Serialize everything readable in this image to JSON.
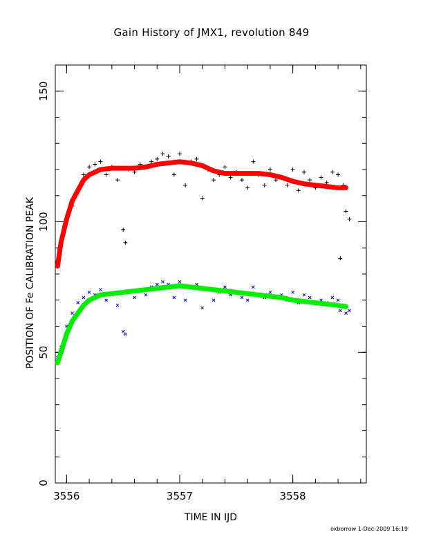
{
  "chart_data": {
    "type": "scatter",
    "title": "Gain History of JMX1, revolution 849",
    "xlabel": "TIME IN IJD",
    "ylabel": "POSITION OF Fe CALIBRATION PEAK",
    "xlim": [
      3555.9,
      3558.65
    ],
    "ylim": [
      0,
      160
    ],
    "xticks": [
      3556,
      3557,
      3558
    ],
    "yticks": [
      0,
      50,
      100,
      150
    ],
    "grid": false,
    "series": [
      {
        "marker": "plus",
        "color": "#000000",
        "x": [
          3555.92,
          3555.95,
          3556.0,
          3556.05,
          3556.1,
          3556.15,
          3556.2,
          3556.25,
          3556.3,
          3556.35,
          3556.4,
          3556.45,
          3556.5,
          3556.52,
          3556.55,
          3556.6,
          3556.65,
          3556.7,
          3556.75,
          3556.8,
          3556.85,
          3556.9,
          3556.95,
          3557.0,
          3557.05,
          3557.1,
          3557.15,
          3557.2,
          3557.25,
          3557.3,
          3557.35,
          3557.4,
          3557.45,
          3557.5,
          3557.55,
          3557.6,
          3557.65,
          3557.7,
          3557.75,
          3557.8,
          3557.85,
          3557.9,
          3557.95,
          3558.0,
          3558.05,
          3558.1,
          3558.15,
          3558.2,
          3558.25,
          3558.3,
          3558.35,
          3558.4,
          3558.42,
          3558.45,
          3558.47,
          3558.5
        ],
        "y": [
          85,
          92,
          100,
          106,
          112,
          118,
          121,
          122,
          123,
          118,
          121,
          116,
          97,
          92,
          120,
          119,
          122,
          121,
          123,
          124,
          126,
          125,
          118,
          126,
          114,
          123,
          124,
          109,
          120,
          116,
          118,
          121,
          117,
          119,
          116,
          113,
          123,
          118,
          114,
          120,
          116,
          117,
          114,
          120,
          112,
          119,
          116,
          113,
          117,
          115,
          119,
          118,
          86,
          114,
          104,
          101
        ]
      },
      {
        "marker": "cross",
        "color": "#0000cc",
        "x": [
          3555.92,
          3555.95,
          3556.0,
          3556.05,
          3556.1,
          3556.15,
          3556.2,
          3556.25,
          3556.3,
          3556.35,
          3556.4,
          3556.45,
          3556.5,
          3556.52,
          3556.55,
          3556.6,
          3556.65,
          3556.7,
          3556.75,
          3556.8,
          3556.85,
          3556.9,
          3556.95,
          3557.0,
          3557.05,
          3557.1,
          3557.15,
          3557.2,
          3557.25,
          3557.3,
          3557.35,
          3557.4,
          3557.45,
          3557.5,
          3557.55,
          3557.6,
          3557.65,
          3557.7,
          3557.75,
          3557.8,
          3557.85,
          3557.9,
          3557.95,
          3558.0,
          3558.05,
          3558.1,
          3558.15,
          3558.2,
          3558.25,
          3558.3,
          3558.35,
          3558.4,
          3558.42,
          3558.45,
          3558.47,
          3558.5
        ],
        "y": [
          48,
          52,
          60,
          65,
          69,
          71,
          73,
          72,
          74,
          70,
          72,
          68,
          58,
          57,
          73,
          71,
          74,
          72,
          75,
          76,
          77,
          76,
          71,
          77,
          70,
          75,
          76,
          67,
          74,
          70,
          73,
          75,
          72,
          73,
          71,
          70,
          75,
          72,
          71,
          73,
          71,
          72,
          70,
          73,
          69,
          72,
          71,
          69,
          70,
          69,
          71,
          70,
          66,
          68,
          65,
          66
        ]
      },
      {
        "marker": "thick-line",
        "color": "#ff0000",
        "x": [
          3555.92,
          3555.95,
          3556.0,
          3556.05,
          3556.1,
          3556.15,
          3556.2,
          3556.3,
          3556.4,
          3556.5,
          3556.6,
          3556.7,
          3556.8,
          3556.9,
          3557.0,
          3557.1,
          3557.2,
          3557.3,
          3557.4,
          3557.5,
          3557.6,
          3557.7,
          3557.8,
          3557.9,
          3558.0,
          3558.1,
          3558.2,
          3558.3,
          3558.4,
          3558.47
        ],
        "y": [
          83,
          92,
          101,
          108,
          112,
          116,
          118,
          120,
          120.5,
          120.5,
          120.5,
          121,
          122,
          122.5,
          123,
          122.5,
          121.5,
          119.5,
          118.5,
          118.5,
          118.5,
          118.5,
          118,
          117,
          115.5,
          114.5,
          114,
          113.5,
          113,
          113
        ]
      },
      {
        "marker": "thick-line",
        "color": "#00ee00",
        "x": [
          3555.92,
          3555.95,
          3556.0,
          3556.05,
          3556.1,
          3556.15,
          3556.2,
          3556.3,
          3556.4,
          3556.5,
          3556.6,
          3556.7,
          3556.8,
          3556.9,
          3557.0,
          3557.1,
          3557.2,
          3557.3,
          3557.4,
          3557.5,
          3557.6,
          3557.7,
          3557.8,
          3557.9,
          3558.0,
          3558.1,
          3558.2,
          3558.3,
          3558.4,
          3558.47
        ],
        "y": [
          46,
          50,
          57,
          62,
          65,
          68,
          70,
          72,
          72.5,
          73,
          73.5,
          74,
          74.5,
          75,
          75.5,
          75,
          74.5,
          74,
          73.5,
          73,
          72.5,
          72,
          71.5,
          71,
          70,
          69.5,
          69,
          68.5,
          68,
          67.5
        ]
      }
    ]
  },
  "footer_text": "oxborrow  1-Dec-2009 16:19"
}
